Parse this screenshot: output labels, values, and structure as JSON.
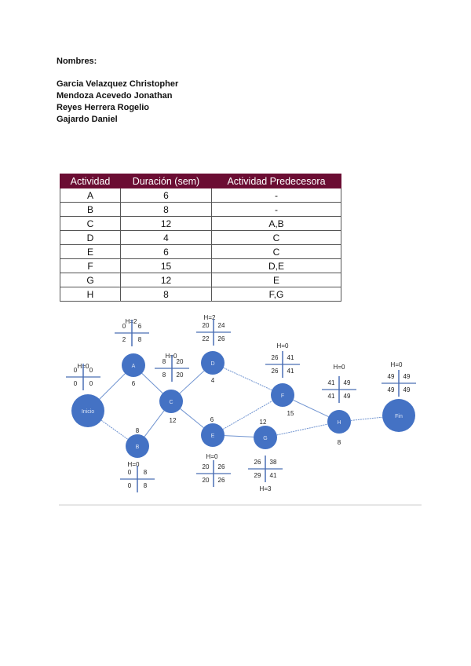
{
  "header": {
    "label": "Nombres:",
    "names": [
      "Garcia Velazquez Christopher",
      "Mendoza Acevedo Jonathan",
      "Reyes Herrera Rogelio",
      "Gajardo Daniel"
    ]
  },
  "table": {
    "columns": [
      "Actividad",
      "Duración (sem)",
      "Actividad Predecesora"
    ],
    "rows": [
      [
        "A",
        "6",
        "-"
      ],
      [
        "B",
        "8",
        "-"
      ],
      [
        "C",
        "12",
        "A,B"
      ],
      [
        "D",
        "4",
        "C"
      ],
      [
        "E",
        "6",
        "C"
      ],
      [
        "F",
        "15",
        "D,E"
      ],
      [
        "G",
        "12",
        "E"
      ],
      [
        "H",
        "8",
        "F,G"
      ]
    ]
  },
  "diagram": {
    "node_color": "#4472c4",
    "nodes": {
      "inicio": {
        "label": "Inicio",
        "slack": "H=0",
        "es": "0",
        "ef": "0",
        "ls": "0",
        "lf": "0"
      },
      "a": {
        "label": "A",
        "duration": "6",
        "slack": "H=2",
        "es": "0",
        "ef": "6",
        "ls": "2",
        "lf": "8"
      },
      "b": {
        "label": "B",
        "duration": "8",
        "slack": "H=0",
        "es": "0",
        "ef": "8",
        "ls": "0",
        "lf": "8"
      },
      "c": {
        "label": "C",
        "duration": "12",
        "slack": "H=0",
        "es": "8",
        "ef": "20",
        "ls": "8",
        "lf": "20"
      },
      "d": {
        "label": "D",
        "duration": "4",
        "slack": "H=2",
        "es": "20",
        "ef": "24",
        "ls": "22",
        "lf": "26"
      },
      "e": {
        "label": "E",
        "duration": "6",
        "slack": "H=0",
        "es": "20",
        "ef": "26",
        "ls": "20",
        "lf": "26"
      },
      "f": {
        "label": "F",
        "duration": "15",
        "slack": "H=0",
        "es": "26",
        "ef": "41",
        "ls": "26",
        "lf": "41"
      },
      "g": {
        "label": "G",
        "duration": "12",
        "slack": "H=3",
        "es": "26",
        "ef": "38",
        "ls": "29",
        "lf": "41"
      },
      "h": {
        "label": "H",
        "duration": "8",
        "slack": "H=0",
        "es": "41",
        "ef": "49",
        "ls": "41",
        "lf": "49"
      },
      "fin": {
        "label": "Fin",
        "slack": "H=0",
        "es": "49",
        "ef": "49",
        "ls": "49",
        "lf": "49"
      }
    }
  }
}
